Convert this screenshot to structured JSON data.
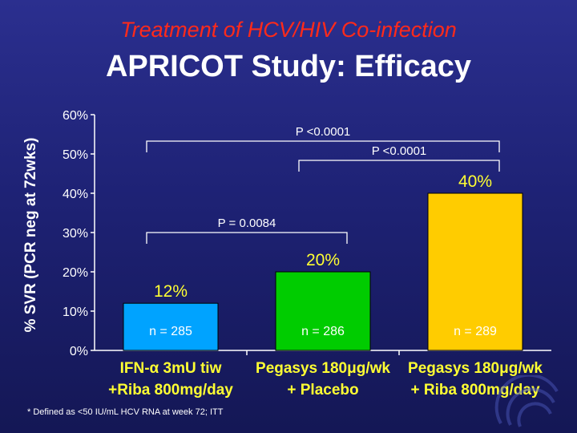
{
  "header": {
    "subtitle": "Treatment of HCV/HIV Co-infection",
    "title": "APRICOT Study: Efficacy"
  },
  "footnote": "* Defined as <50 IU/mL HCV RNA at week 72; ITT",
  "colors": {
    "background": "#1e2275",
    "subtitle": "#ff2a1a",
    "data_labels": "#ffff33",
    "bars": [
      "#00a3ff",
      "#00cc00",
      "#ffcc00"
    ]
  },
  "chart_data": {
    "type": "bar",
    "ylabel": "% SVR (PCR neg at 72wks)",
    "ylim": [
      0,
      60
    ],
    "yticks": [
      "0%",
      "10%",
      "20%",
      "30%",
      "40%",
      "50%",
      "60%"
    ],
    "grid": false,
    "legend": "none",
    "categories": [
      {
        "line1": "IFN-α 3mU tiw",
        "line2": "+Riba 800mg/day"
      },
      {
        "line1": "Pegasys 180μg/wk",
        "line2": "+ Placebo"
      },
      {
        "line1": "Pegasys 180μg/wk",
        "line2": "+ Riba 800mg/day"
      }
    ],
    "values": [
      12,
      20,
      40
    ],
    "value_labels": [
      "12%",
      "20%",
      "40%"
    ],
    "n_labels": [
      "n = 285",
      "n = 286",
      "n = 289"
    ],
    "comparisons": [
      {
        "from": 0,
        "to": 2,
        "label": "P <0.0001"
      },
      {
        "from": 1,
        "to": 2,
        "label": "P <0.0001"
      },
      {
        "from": 0,
        "to": 1,
        "label": "P = 0.0084"
      }
    ]
  }
}
